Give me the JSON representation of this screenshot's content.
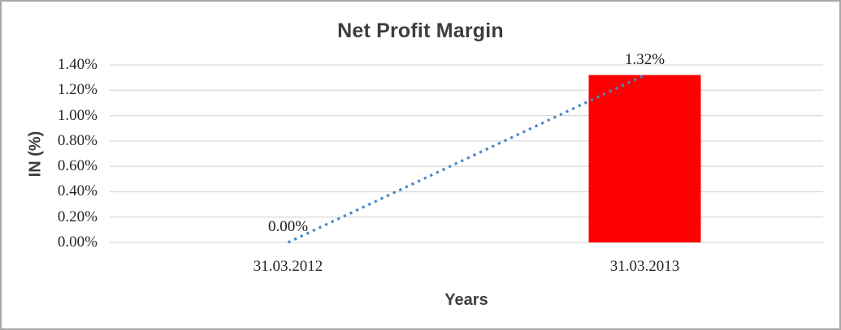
{
  "window": {
    "background": "#ffffff",
    "frame_border_color": "#a8a8a8"
  },
  "chart_data": {
    "type": "bar",
    "title": "Net Profit Margin",
    "xlabel": "Years",
    "ylabel": "IN (%)",
    "categories": [
      "31.03.2012",
      "31.03.2013"
    ],
    "series": [
      {
        "name": "Net Profit Margin",
        "values": [
          0.0,
          1.32
        ],
        "value_labels": [
          "0.00%",
          "1.32%"
        ],
        "bar_color": "#ff0000"
      }
    ],
    "trendline": {
      "style": "dotted",
      "color": "#4a86c8",
      "points": [
        0.0,
        1.32
      ]
    },
    "y_ticks": [
      "1.40%",
      "1.20%",
      "1.00%",
      "0.80%",
      "0.60%",
      "0.40%",
      "0.20%",
      "0.00%"
    ],
    "ylim": [
      0,
      1.4
    ],
    "y_step": 0.2,
    "value_unit": "%",
    "grid": true,
    "gridline_color": "#d9d9d9",
    "legend_position": "none"
  }
}
